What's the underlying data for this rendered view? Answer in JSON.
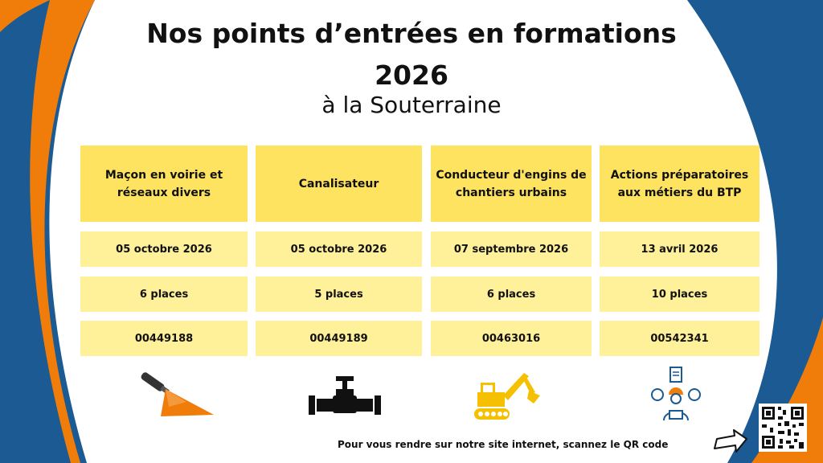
{
  "title_line1": "Nos points d’entrées en formations",
  "title_line2": "2026",
  "subtitle": "à la Souterraine",
  "formations": [
    {
      "name": "Maçon en voirie et réseaux divers",
      "date": "05 octobre 2026",
      "places": "6 places",
      "code": "00449188",
      "icon": "trowel-icon"
    },
    {
      "name": "Canalisateur",
      "date": "05 octobre 2026",
      "places": "5 places",
      "code": "00449189",
      "icon": "pipe-valve-icon"
    },
    {
      "name": "Conducteur d'engins de chantiers urbains",
      "date": "07 septembre 2026",
      "places": "6 places",
      "code": "00463016",
      "icon": "excavator-icon"
    },
    {
      "name": "Actions préparatoires aux métiers du BTP",
      "date": "13 avril 2026",
      "places": "10 places",
      "code": "00542341",
      "icon": "worker-laptop-icon"
    }
  ],
  "footer_text": "Pour vous rendre sur notre site internet, scannez le QR code",
  "colors": {
    "blue": "#1b5a92",
    "orange": "#f07d0a",
    "header_yellow": "#fde35f",
    "row_yellow": "#fff09a"
  }
}
